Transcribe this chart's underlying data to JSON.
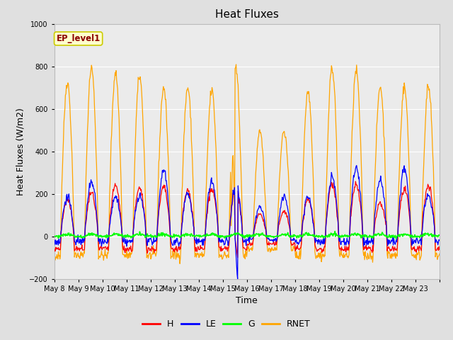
{
  "title": "Heat Fluxes",
  "xlabel": "Time",
  "ylabel": "Heat Fluxes (W/m2)",
  "ylim": [
    -200,
    1000
  ],
  "yticks": [
    -200,
    0,
    200,
    400,
    600,
    800,
    1000
  ],
  "legend_labels": [
    "H",
    "LE",
    "G",
    "RNET"
  ],
  "legend_colors": [
    "red",
    "blue",
    "green",
    "orange"
  ],
  "annotation_text": "EP_level1",
  "annotation_color": "#8B0000",
  "annotation_bg": "#FFFFCC",
  "annotation_edge": "#CCCC00",
  "x_tick_labels": [
    "May 8",
    "May 9",
    "May 10",
    "May 11",
    "May 12",
    "May 13",
    "May 14",
    "May 15",
    "May 16",
    "May 17",
    "May 18",
    "May 19",
    "May 20",
    "May 21",
    "May 22",
    "May 23"
  ],
  "figure_bg": "#E0E0E0",
  "plot_bg": "#EBEBEB",
  "num_days": 16,
  "points_per_day": 48,
  "seed": 42
}
